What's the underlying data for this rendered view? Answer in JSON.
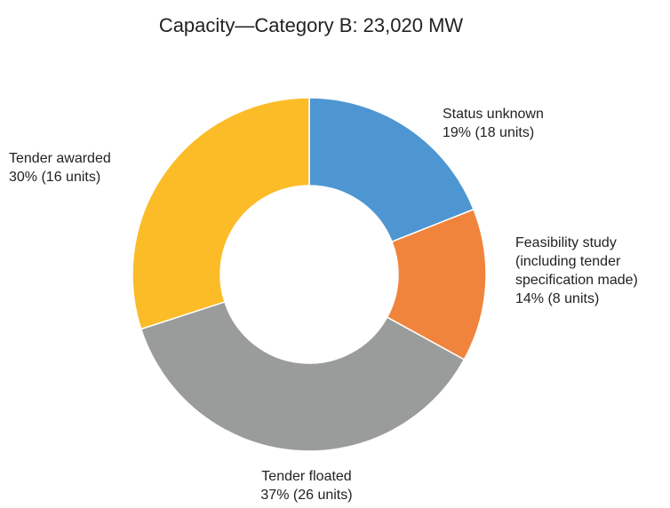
{
  "chart_data": {
    "type": "donut",
    "title": "Capacity—Category B: 23,020 MW",
    "categories": [
      "Status unknown",
      "Feasibility study\n(including tender\nspecification made)",
      "Tender floated",
      "Tender awarded"
    ],
    "values": [
      19,
      14,
      37,
      30
    ],
    "value_labels": [
      "19% (18 units)",
      "14% (8 units)",
      "37% (26 units)",
      "30% (16 units)"
    ],
    "colors": [
      "#4e96d2",
      "#f0843c",
      "#9a9c9b",
      "#fbbc28"
    ]
  }
}
